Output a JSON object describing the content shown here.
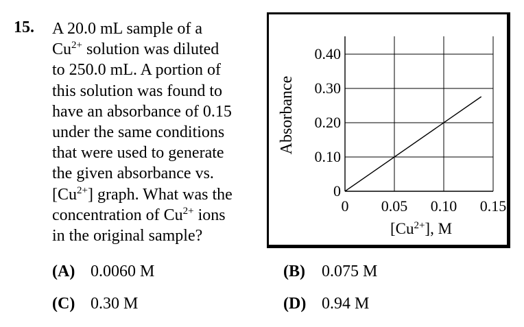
{
  "question": {
    "number": "15.",
    "lines": [
      [
        "A 20.0 mL sample of a"
      ],
      [
        "Cu",
        {
          "sup": "2+"
        },
        " solution was diluted"
      ],
      [
        "to 250.0 mL. A portion of"
      ],
      [
        "this solution was found to"
      ],
      [
        "have an absorbance of 0.15"
      ],
      [
        "under the same conditions"
      ],
      [
        "that were used to generate"
      ],
      [
        "the given absorbance vs."
      ],
      [
        "[Cu",
        {
          "sup": "2+"
        },
        "] graph. What was the"
      ],
      [
        "concentration of Cu",
        {
          "sup": "2+"
        },
        " ions"
      ],
      [
        "in the original sample?"
      ]
    ]
  },
  "choices": {
    "a": {
      "letter": "(A)",
      "text": "0.0060 M"
    },
    "b": {
      "letter": "(B)",
      "text": "0.075 M"
    },
    "c": {
      "letter": "(C)",
      "text": "0.30 M"
    },
    "d": {
      "letter": "(D)",
      "text": "0.94 M"
    }
  },
  "chart_data": {
    "type": "line",
    "title": "",
    "xlabel": "[Cu2+], M",
    "xlabel_base": "[Cu",
    "xlabel_sup": "2+",
    "xlabel_tail": "], M",
    "ylabel": "Absorbance",
    "xlim": [
      0,
      0.15
    ],
    "ylim": [
      0,
      0.45
    ],
    "x_ticks": [
      0,
      0.05,
      0.1,
      0.15
    ],
    "x_tick_labels": [
      "0",
      "0.05",
      "0.10",
      "0.15"
    ],
    "y_ticks": [
      0,
      0.1,
      0.2,
      0.3,
      0.4
    ],
    "y_tick_labels": [
      "0",
      "0.10",
      "0.20",
      "0.30",
      "0.40"
    ],
    "grid": true,
    "series": [
      {
        "x": [
          0,
          0.138
        ],
        "y": [
          0,
          0.276
        ]
      }
    ]
  }
}
